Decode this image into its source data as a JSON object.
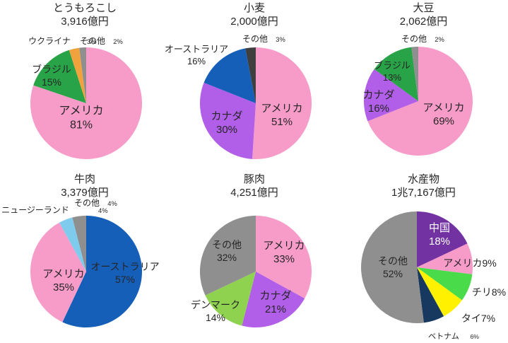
{
  "page": {
    "background": "#FFFFFF"
  },
  "style": {
    "title_color": "#262626",
    "label_color": "#262626"
  },
  "chart_data": [
    {
      "type": "pie",
      "title": "とうもろこし",
      "subtitle": "3,916億円",
      "unit": "%",
      "center": [
        122,
        146
      ],
      "r": 79,
      "slices": [
        {
          "key": "usa",
          "name": "アメリカ",
          "value": 81,
          "color": "#F79BC8",
          "label": {
            "placement": "inside",
            "pos": [
              -7,
              20
            ],
            "size": 16,
            "lines": [
              {
                "t": "アメリカ"
              },
              {
                "t": "81%"
              }
            ]
          }
        },
        {
          "key": "brazil",
          "name": "ブラジル",
          "value": 15,
          "color": "#29A347",
          "label": {
            "placement": "inside",
            "pos": [
              -49,
              -39
            ],
            "size": 14,
            "lines": [
              {
                "t": "ブラジル"
              },
              {
                "t": "15%"
              }
            ]
          }
        },
        {
          "key": "ukraine",
          "name": "ウクライナ",
          "value": 3,
          "color": "#F0A33C",
          "label": {
            "placement": "outside",
            "pos": [
              -52,
              -88
            ],
            "size": 12,
            "lines": [
              {
                "t": "ウクライナ",
                "s": "3%"
              }
            ]
          }
        },
        {
          "key": "others",
          "name": "その他",
          "value": 2,
          "color": "#8F8F8F",
          "label": {
            "placement": "outside",
            "pos": [
              9,
              -88
            ],
            "size": 12,
            "lines": [
              {
                "t": "その他",
                "s": "2%"
              }
            ]
          }
        }
      ]
    },
    {
      "type": "pie",
      "title": "小麦",
      "subtitle": "2,000億円",
      "unit": "%",
      "center": [
        122,
        146
      ],
      "r": 79,
      "slices": [
        {
          "key": "usa",
          "name": "アメリカ",
          "value": 51,
          "color": "#F79BC8",
          "label": {
            "placement": "inside",
            "pos": [
              37,
              16
            ],
            "size": 15,
            "lines": [
              {
                "t": "アメリカ"
              },
              {
                "t": "51%"
              }
            ]
          }
        },
        {
          "key": "canada",
          "name": "カナダ",
          "value": 30,
          "color": "#B15EE8",
          "label": {
            "placement": "inside",
            "pos": [
              -41,
              27
            ],
            "size": 15,
            "lines": [
              {
                "t": "カナダ"
              },
              {
                "t": "30%"
              }
            ]
          }
        },
        {
          "key": "australia",
          "name": "オーストラリア",
          "value": 16,
          "color": "#155FB8",
          "label": {
            "placement": "outside",
            "pos": [
              -84,
              -68
            ],
            "size": 13,
            "lines": [
              {
                "t": "オーストラリア"
              },
              {
                "t": "16%"
              }
            ]
          }
        },
        {
          "key": "others",
          "name": "その他",
          "value": 3,
          "color": "#3F3F3F",
          "label": {
            "placement": "outside",
            "pos": [
              -1,
              -91
            ],
            "size": 12,
            "lines": [
              {
                "t": "その他",
                "s": "3%"
              }
            ]
          }
        }
      ]
    },
    {
      "type": "pie",
      "title": "大豆",
      "subtitle": "2,062億円",
      "unit": "%",
      "center": [
        112,
        143
      ],
      "r": 77,
      "slices": [
        {
          "key": "usa",
          "name": "アメリカ",
          "value": 69,
          "color": "#F79BC8",
          "label": {
            "placement": "inside",
            "pos": [
              36,
              18
            ],
            "size": 15,
            "lines": [
              {
                "t": "アメリカ"
              },
              {
                "t": "69%"
              }
            ]
          }
        },
        {
          "key": "canada",
          "name": "カナダ",
          "value": 16,
          "color": "#B15EE8",
          "label": {
            "placement": "inside",
            "pos": [
              -56,
              0
            ],
            "size": 15,
            "lines": [
              {
                "t": "カナダ"
              },
              {
                "t": "16%"
              }
            ]
          }
        },
        {
          "key": "brazil",
          "name": "ブラジル",
          "value": 13,
          "color": "#29A347",
          "label": {
            "placement": "inside",
            "pos": [
              -37,
              -42
            ],
            "size": 13,
            "lines": [
              {
                "t": "ブラジル"
              },
              {
                "t": "13%"
              }
            ]
          }
        },
        {
          "key": "others",
          "name": "その他",
          "value": 2,
          "color": "#8F8F8F",
          "label": {
            "placement": "outside",
            "pos": [
              -6,
              -88
            ],
            "size": 12,
            "lines": [
              {
                "t": "その他",
                "s": "2%"
              }
            ]
          }
        }
      ]
    },
    {
      "type": "pie",
      "title": "牛肉",
      "subtitle": "3,379億円",
      "unit": "%",
      "center": [
        122,
        142
      ],
      "r": 79,
      "slices": [
        {
          "key": "australia",
          "name": "オーストラリア",
          "value": 57,
          "color": "#155FB8",
          "label": {
            "placement": "inside",
            "pos": [
              55,
              2
            ],
            "size": 14,
            "lines": [
              {
                "t": "オーストラリア"
              },
              {
                "t": "57%"
              }
            ]
          }
        },
        {
          "key": "usa",
          "name": "アメリカ",
          "value": 35,
          "color": "#F79BC8",
          "label": {
            "placement": "inside",
            "pos": [
              -32,
              12
            ],
            "size": 15,
            "lines": [
              {
                "t": "アメリカ"
              },
              {
                "t": "35%"
              }
            ]
          }
        },
        {
          "key": "new-zealand",
          "name": "ニュージーランド",
          "value": 4,
          "color": "#7FCBEE",
          "label": {
            "placement": "outside",
            "pos": [
              -72,
              -87
            ],
            "size": 12,
            "lines": [
              {
                "t": "ニュージーランド",
                "s": "4%"
              }
            ]
          }
        },
        {
          "key": "others",
          "name": "その他",
          "value": 4,
          "color": "#8F8F8F",
          "label": {
            "placement": "outside",
            "pos": [
              1,
              -97
            ],
            "size": 12,
            "lines": [
              {
                "t": "その他",
                "s": "4%"
              }
            ]
          }
        }
      ]
    },
    {
      "type": "pie",
      "title": "豚肉",
      "subtitle": "4,251億円",
      "unit": "%",
      "center": [
        122,
        142
      ],
      "r": 79,
      "slices": [
        {
          "key": "usa",
          "name": "アメリカ",
          "value": 33,
          "color": "#F79BC8",
          "label": {
            "placement": "inside",
            "pos": [
              40,
              -28
            ],
            "size": 15,
            "lines": [
              {
                "t": "アメリカ"
              },
              {
                "t": "33%"
              }
            ]
          }
        },
        {
          "key": "canada",
          "name": "カナダ",
          "value": 21,
          "color": "#B15EE8",
          "label": {
            "placement": "inside",
            "pos": [
              28,
              43
            ],
            "size": 15,
            "lines": [
              {
                "t": "カナダ"
              },
              {
                "t": "21%"
              }
            ]
          }
        },
        {
          "key": "denmark",
          "name": "デンマーク",
          "value": 14,
          "color": "#8FD24F",
          "label": {
            "placement": "inside",
            "pos": [
              -57,
              56
            ],
            "size": 14,
            "lines": [
              {
                "t": "デンマーク"
              },
              {
                "t": "14%"
              }
            ]
          }
        },
        {
          "key": "others",
          "name": "その他",
          "value": 32,
          "color": "#8F8F8F",
          "label": {
            "placement": "inside",
            "pos": [
              -41,
              -29
            ],
            "size": 14,
            "lines": [
              {
                "t": "その他"
              },
              {
                "t": "32%"
              }
            ]
          }
        }
      ]
    },
    {
      "type": "pie",
      "title": "水産物",
      "subtitle": "1兆7,167億円",
      "unit": "%",
      "center": [
        110,
        136
      ],
      "r": 79,
      "slices": [
        {
          "key": "china",
          "name": "中国",
          "value": 18,
          "color": "#7232A2",
          "label": {
            "placement": "inside",
            "pos": [
              32,
              -47
            ],
            "size": 15,
            "color": "#FFFFFF",
            "lines": [
              {
                "t": "中国"
              },
              {
                "t": "18%"
              }
            ]
          }
        },
        {
          "key": "usa",
          "name": "アメリカ",
          "value": 9,
          "color": "#F79BC8",
          "label": {
            "placement": "outside",
            "pos": [
              75,
              -6
            ],
            "size": 14,
            "lines": [
              {
                "t": "アメリカ9%"
              }
            ]
          }
        },
        {
          "key": "chile",
          "name": "チリ",
          "value": 8,
          "color": "#4ADB4A",
          "label": {
            "placement": "outside",
            "pos": [
              102,
              35
            ],
            "size": 14,
            "lines": [
              {
                "t": "チリ8%"
              }
            ]
          }
        },
        {
          "key": "thailand",
          "name": "タイ",
          "value": 7,
          "color": "#FFF100",
          "label": {
            "placement": "outside",
            "pos": [
              87,
              72
            ],
            "size": 14,
            "lines": [
              {
                "t": "タイ7%"
              }
            ]
          }
        },
        {
          "key": "vietnam",
          "name": "ベトナム",
          "value": 6,
          "color": "#17395F",
          "label": {
            "placement": "outside",
            "pos": [
              38,
              97
            ],
            "size": 11,
            "lines": [
              {
                "t": "ベトナム",
                "s": "6%"
              }
            ]
          }
        },
        {
          "key": "others",
          "name": "その他",
          "value": 52,
          "color": "#8F8F8F",
          "label": {
            "placement": "inside",
            "pos": [
              -34,
              0
            ],
            "size": 14,
            "lines": [
              {
                "t": "その他"
              },
              {
                "t": "52%"
              }
            ]
          }
        }
      ]
    }
  ]
}
